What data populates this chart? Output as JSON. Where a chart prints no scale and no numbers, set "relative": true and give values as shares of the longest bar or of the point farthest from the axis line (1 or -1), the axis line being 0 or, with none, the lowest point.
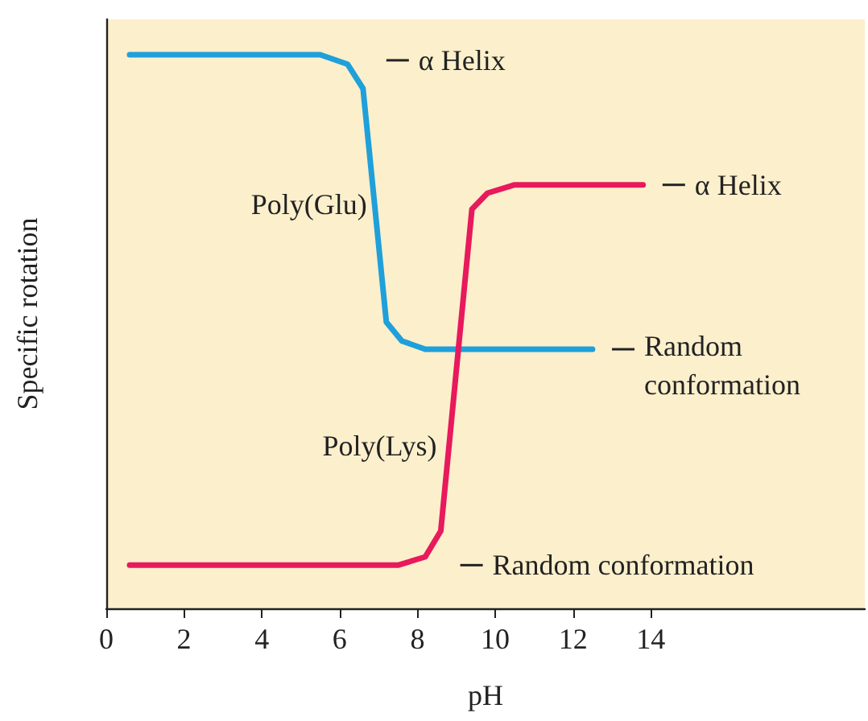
{
  "chart_data": {
    "type": "line",
    "relative": true,
    "xlabel": "pH",
    "ylabel": "Specific rotation",
    "xlim": [
      0,
      19.5
    ],
    "xticks": [
      0,
      2,
      4,
      6,
      8,
      10,
      12,
      14
    ],
    "grid": false,
    "legend": false,
    "marker": "none",
    "line_style": "solid",
    "series": [
      {
        "name": "Poly(Glu)",
        "color": "#1fa0da",
        "x": [
          0.6,
          5.5,
          6.2,
          6.6,
          7.2,
          7.6,
          8.2,
          12.5
        ],
        "values": [
          1,
          1,
          0.983,
          0.939,
          0.517,
          0.483,
          0.468,
          0.468
        ]
      },
      {
        "name": "Poly(Lys)",
        "color": "#e8195c",
        "x": [
          0.6,
          7.5,
          8.2,
          8.6,
          9.4,
          9.8,
          10.5,
          13.8
        ],
        "values": [
          0.078,
          0.078,
          0.093,
          0.14,
          0.721,
          0.75,
          0.765,
          0.765
        ]
      }
    ],
    "annotations": [
      "α Helix",
      "α Helix",
      "Random conformation",
      "Random conformation"
    ]
  }
}
